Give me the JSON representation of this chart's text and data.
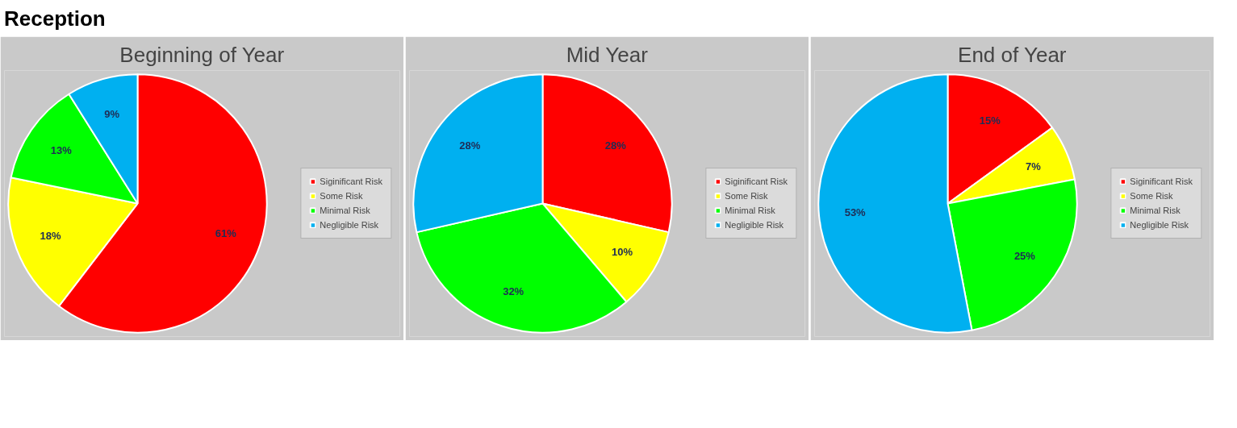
{
  "chart_data": [
    {
      "type": "pie",
      "title": "Beginning of Year",
      "annotations": [
        "Reception"
      ],
      "categories": [
        "Siginificant Risk",
        "Some Risk",
        "Minimal Risk",
        "Negligible Risk"
      ],
      "values": [
        61,
        18,
        13,
        9
      ],
      "value_labels": [
        "61%",
        "18%",
        "13%",
        "9%"
      ],
      "colors": [
        "#ff0000",
        "#ffff00",
        "#00ff00",
        "#00b0f0"
      ],
      "legend": "right"
    },
    {
      "type": "pie",
      "title": "Mid Year",
      "categories": [
        "Siginificant Risk",
        "Some Risk",
        "Minimal Risk",
        "Negligible Risk"
      ],
      "values": [
        28,
        10,
        32,
        28
      ],
      "value_labels": [
        "28%",
        "10%",
        "32%",
        "28%"
      ],
      "colors": [
        "#ff0000",
        "#ffff00",
        "#00ff00",
        "#00b0f0"
      ],
      "legend": "right"
    },
    {
      "type": "pie",
      "title": "End of Year",
      "categories": [
        "Siginificant Risk",
        "Some Risk",
        "Minimal Risk",
        "Negligible Risk"
      ],
      "values": [
        15,
        7,
        25,
        53
      ],
      "value_labels": [
        "15%",
        "7%",
        "25%",
        "53%"
      ],
      "colors": [
        "#ff0000",
        "#ffff00",
        "#00ff00",
        "#00b0f0"
      ],
      "legend": "right"
    }
  ]
}
